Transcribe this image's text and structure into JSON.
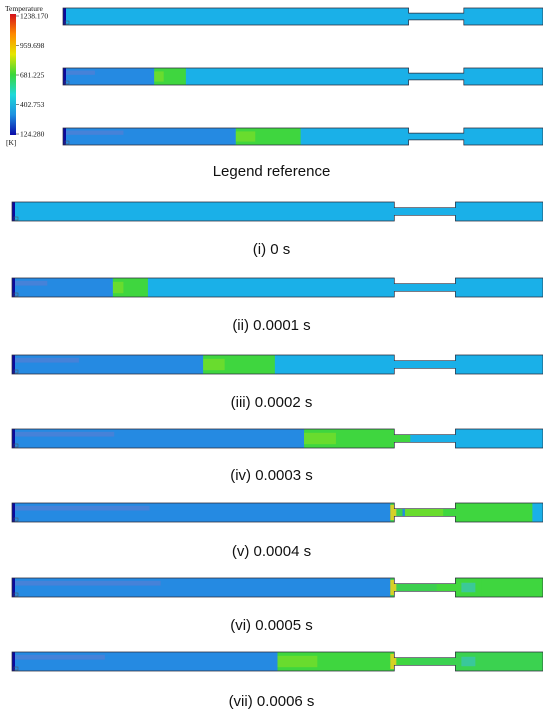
{
  "legend": {
    "title": "Temperature",
    "unit": "[K]",
    "ticks": [
      "1238.170",
      "959.698",
      "681.225",
      "402.753",
      "124.280"
    ],
    "colors": [
      "#d4101a",
      "#ff8a00",
      "#e6e600",
      "#3ad63a",
      "#1ed9d9",
      "#1e90e0",
      "#0a0aa8"
    ]
  },
  "colors": {
    "base": "#1ab0e8",
    "cool": "#2a7ee0",
    "dark": "#0a0a9c",
    "hot": "#3fd63f",
    "warm": "#9ee51a",
    "outline": "#2b2b3b"
  },
  "legend_caption": "Legend reference",
  "reference_frames": [
    {
      "cool_frac": 0.0,
      "hot_frac": 0.0,
      "spill": 0.0
    },
    {
      "cool_frac": 0.19,
      "hot_frac": 0.066,
      "spill": 0.0
    },
    {
      "cool_frac": 0.36,
      "hot_frac": 0.135,
      "spill": 0.0
    }
  ],
  "frames": [
    {
      "caption": "(i) 0 s",
      "cool_frac": 0.0,
      "hot_frac": 0.0,
      "spill": 0.0
    },
    {
      "caption": "(ii) 0.0001 s",
      "cool_frac": 0.19,
      "hot_frac": 0.066,
      "spill": 0.0
    },
    {
      "caption": "(iii) 0.0002 s",
      "cool_frac": 0.36,
      "hot_frac": 0.135,
      "spill": 0.0
    },
    {
      "caption": "(iv) 0.0003 s",
      "cool_frac": 0.55,
      "hot_frac": 0.2,
      "spill": 0.0
    },
    {
      "caption": "(v) 0.0004 s",
      "cool_frac": 0.74,
      "hot_frac": 0.24,
      "spill": 0.08
    },
    {
      "caption": "(vi) 0.0005 s",
      "cool_frac": 0.8,
      "hot_frac": 0.22,
      "spill": 0.6
    },
    {
      "caption": "(vii) 0.0006 s",
      "cool_frac": 0.5,
      "hot_frac": 0.25,
      "spill": 1.0
    }
  ]
}
